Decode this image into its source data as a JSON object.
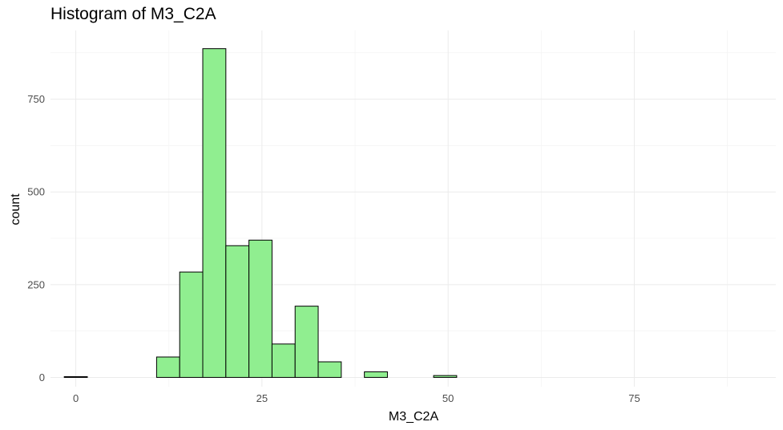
{
  "chart_data": {
    "type": "bar",
    "title": "Histogram of M3_C2A",
    "xlabel": "M3_C2A",
    "ylabel": "count",
    "xlim": [
      -3.4,
      94
    ],
    "ylim": [
      -25,
      935
    ],
    "x_ticks": [
      0,
      25,
      50,
      75
    ],
    "y_ticks": [
      0,
      250,
      500,
      750
    ],
    "grid": true,
    "bin_width": 3.1,
    "bins": [
      {
        "start": -1.55,
        "end": 1.55,
        "count": 2
      },
      {
        "start": 1.55,
        "end": 4.65,
        "count": 0
      },
      {
        "start": 4.65,
        "end": 7.75,
        "count": 0
      },
      {
        "start": 7.75,
        "end": 10.85,
        "count": 0
      },
      {
        "start": 10.85,
        "end": 13.95,
        "count": 55
      },
      {
        "start": 13.95,
        "end": 17.05,
        "count": 284
      },
      {
        "start": 17.05,
        "end": 20.15,
        "count": 886
      },
      {
        "start": 20.15,
        "end": 23.25,
        "count": 355
      },
      {
        "start": 23.25,
        "end": 26.35,
        "count": 370
      },
      {
        "start": 26.35,
        "end": 29.45,
        "count": 90
      },
      {
        "start": 29.45,
        "end": 32.55,
        "count": 192
      },
      {
        "start": 32.55,
        "end": 35.65,
        "count": 42
      },
      {
        "start": 35.65,
        "end": 38.75,
        "count": 0
      },
      {
        "start": 38.75,
        "end": 41.85,
        "count": 15
      },
      {
        "start": 41.85,
        "end": 44.95,
        "count": 0
      },
      {
        "start": 44.95,
        "end": 48.05,
        "count": 0
      },
      {
        "start": 48.05,
        "end": 51.15,
        "count": 5
      },
      {
        "start": 51.15,
        "end": 54.25,
        "count": 0
      },
      {
        "start": 54.25,
        "end": 57.35,
        "count": 0
      },
      {
        "start": 57.35,
        "end": 60.45,
        "count": 0
      },
      {
        "start": 60.45,
        "end": 63.55,
        "count": 0
      },
      {
        "start": 63.55,
        "end": 66.65,
        "count": 0
      },
      {
        "start": 66.65,
        "end": 69.75,
        "count": 0
      },
      {
        "start": 69.75,
        "end": 72.85,
        "count": 0
      },
      {
        "start": 72.85,
        "end": 75.95,
        "count": 0
      },
      {
        "start": 75.95,
        "end": 79.05,
        "count": 0
      },
      {
        "start": 79.05,
        "end": 82.15,
        "count": 0
      },
      {
        "start": 82.15,
        "end": 85.25,
        "count": 0
      },
      {
        "start": 85.25,
        "end": 88.35,
        "count": 0
      },
      {
        "start": 88.35,
        "end": 91.45,
        "count": 0
      }
    ],
    "colors": {
      "fill": "#90ee90",
      "stroke": "#000000",
      "grid_major": "#ebebeb",
      "grid_minor": "#f4f4f4",
      "tick_text": "#4d4d4d"
    }
  }
}
